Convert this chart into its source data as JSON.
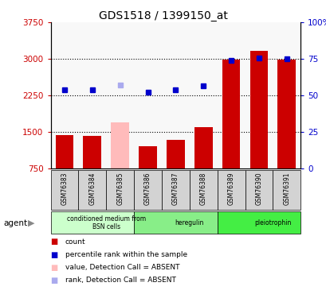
{
  "title": "GDS1518 / 1399150_at",
  "categories": [
    "GSM76383",
    "GSM76384",
    "GSM76385",
    "GSM76386",
    "GSM76387",
    "GSM76388",
    "GSM76389",
    "GSM76390",
    "GSM76391"
  ],
  "bar_values": [
    1430,
    1410,
    1700,
    1210,
    1330,
    1590,
    2980,
    3160,
    2990
  ],
  "bar_colors": [
    "#cc0000",
    "#cc0000",
    "#ffbbbb",
    "#cc0000",
    "#cc0000",
    "#cc0000",
    "#cc0000",
    "#cc0000",
    "#cc0000"
  ],
  "dot_values": [
    2360,
    2360,
    2470,
    2310,
    2365,
    2440,
    2970,
    3010,
    3000
  ],
  "dot_colors": [
    "#0000cc",
    "#0000cc",
    "#aaaaee",
    "#0000cc",
    "#0000cc",
    "#0000cc",
    "#0000cc",
    "#0000cc",
    "#0000cc"
  ],
  "ylim": [
    750,
    3750
  ],
  "yticks": [
    750,
    1500,
    2250,
    3000,
    3750
  ],
  "ytick_labels": [
    "750",
    "1500",
    "2250",
    "3000",
    "3750"
  ],
  "y2ticks": [
    0,
    25,
    50,
    75,
    100
  ],
  "y2tick_labels": [
    "0",
    "25",
    "50",
    "75",
    "100%"
  ],
  "y2lim": [
    0,
    100
  ],
  "gridlines": [
    1500,
    2250,
    3000
  ],
  "agent_groups": [
    {
      "label": "conditioned medium from\nBSN cells",
      "start": 0,
      "end": 3,
      "color": "#ccffcc"
    },
    {
      "label": "heregulin",
      "start": 3,
      "end": 6,
      "color": "#88ee88"
    },
    {
      "label": "pleiotrophin",
      "start": 6,
      "end": 9,
      "color": "#44ee44"
    }
  ],
  "legend_items": [
    {
      "color": "#cc0000",
      "label": "count"
    },
    {
      "color": "#0000cc",
      "label": "percentile rank within the sample"
    },
    {
      "color": "#ffbbbb",
      "label": "value, Detection Call = ABSENT"
    },
    {
      "color": "#aaaaee",
      "label": "rank, Detection Call = ABSENT"
    }
  ],
  "ylabel_color": "#cc0000",
  "y2label_color": "#0000cc",
  "plot_bg": "#f8f8f8",
  "fig_bg": "#ffffff"
}
